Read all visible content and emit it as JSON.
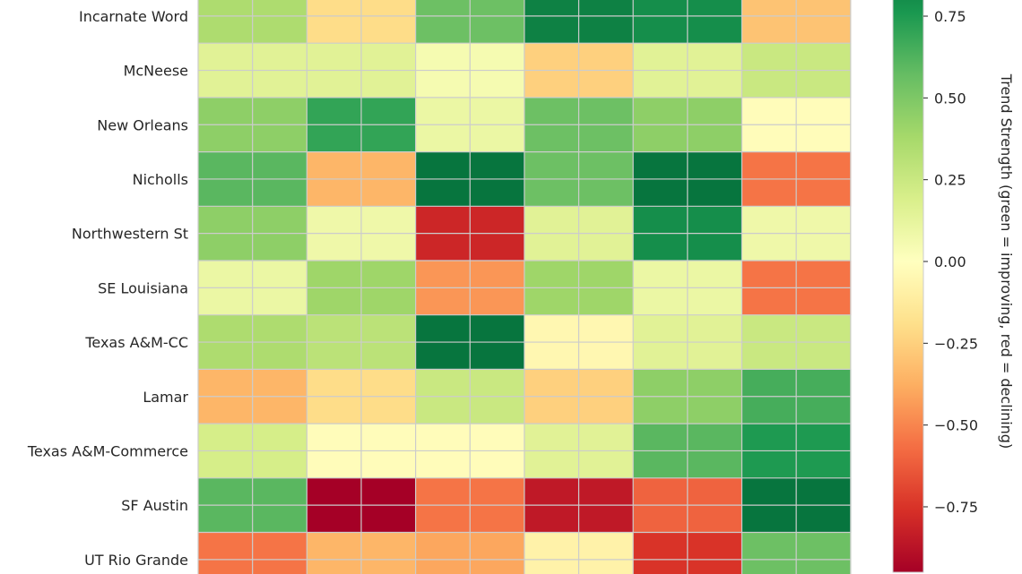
{
  "chart_data": {
    "type": "heatmap",
    "title": "",
    "xlabel": "",
    "ylabel": "",
    "rows": [
      "Incarnate Word",
      "McNeese",
      "New Orleans",
      "Nicholls",
      "Northwestern St",
      "SE Louisiana",
      "Texas A&M-CC",
      "Lamar",
      "Texas A&M-Commerce",
      "SF Austin",
      "UT Rio Grande"
    ],
    "values": [
      [
        0.35,
        -0.2,
        0.55,
        0.85,
        0.8,
        -0.3
      ],
      [
        0.15,
        0.15,
        0.05,
        -0.25,
        0.15,
        0.25
      ],
      [
        0.45,
        0.7,
        0.1,
        0.55,
        0.45,
        -0.02
      ],
      [
        0.6,
        -0.35,
        0.9,
        0.55,
        0.9,
        -0.55
      ],
      [
        0.45,
        0.08,
        -0.8,
        0.15,
        0.8,
        0.08
      ],
      [
        0.1,
        0.4,
        -0.45,
        0.4,
        0.1,
        -0.55
      ],
      [
        0.35,
        0.3,
        0.9,
        -0.05,
        0.15,
        0.25
      ],
      [
        -0.35,
        -0.2,
        0.25,
        -0.25,
        0.45,
        0.65
      ],
      [
        0.2,
        -0.02,
        -0.02,
        0.15,
        0.6,
        0.75
      ],
      [
        0.6,
        -0.95,
        -0.55,
        -0.85,
        -0.6,
        0.9
      ],
      [
        -0.55,
        -0.35,
        -0.4,
        -0.08,
        -0.75,
        0.55
      ]
    ],
    "colormap": "RdYlGn",
    "vrange": [
      -0.95,
      0.95
    ],
    "colorbar": {
      "label": "Trend Strength (green = improving, red = declining)",
      "ticks": [
        "0.75",
        "0.50",
        "0.25",
        "0.00",
        "−0.25",
        "−0.50",
        "−0.75"
      ],
      "tick_values": [
        0.75,
        0.5,
        0.25,
        0,
        -0.25,
        -0.5,
        -0.75
      ]
    },
    "grid": true
  }
}
